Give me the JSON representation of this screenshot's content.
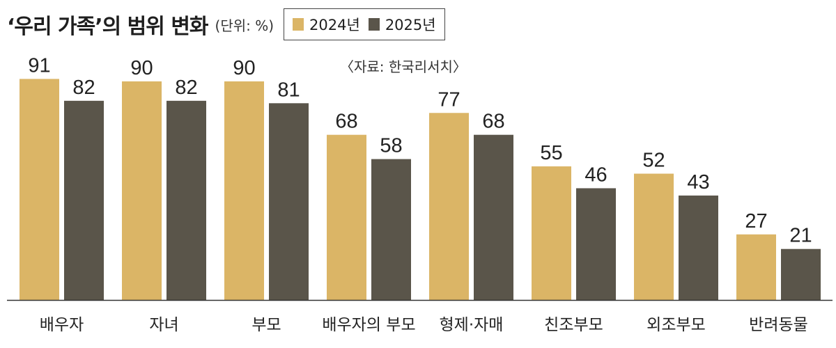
{
  "header": {
    "title": "‘우리 가족’의 범위 변화",
    "unit": "(단위: %)",
    "source": "〈자료: 한국리서치〉"
  },
  "colors": {
    "s2024": "#dbb566",
    "s2025": "#5a554a",
    "axis": "#333333"
  },
  "chart_data": {
    "type": "bar",
    "categories": [
      "배우자",
      "자녀",
      "부모",
      "배우자의 부모",
      "형제·자매",
      "친조부모",
      "외조부모",
      "반려동물"
    ],
    "series": [
      {
        "name": "2024년",
        "values": [
          91,
          90,
          90,
          68,
          77,
          55,
          52,
          27
        ]
      },
      {
        "name": "2025년",
        "values": [
          82,
          82,
          81,
          58,
          68,
          46,
          43,
          21
        ]
      }
    ],
    "ylim": [
      0,
      100
    ],
    "grid": false,
    "legend_position": "top"
  }
}
